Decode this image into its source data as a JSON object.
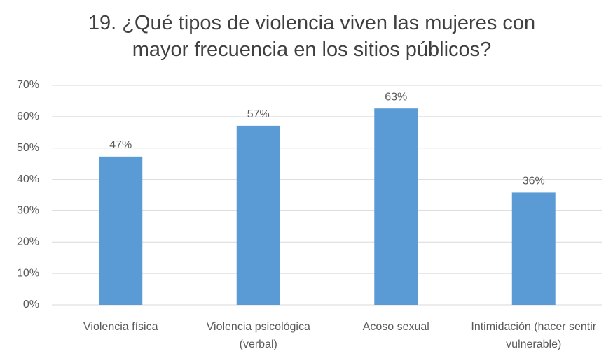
{
  "chart_data": {
    "type": "bar",
    "title": "19. ¿Qué tipos de violencia viven las mujeres con mayor frecuencia en los sitios públicos?",
    "categories": [
      "Violencia física",
      "Violencia psicológica (verbal)",
      "Acoso sexual",
      "Intimidación (hacer sentir vulnerable)"
    ],
    "values": [
      47.3,
      57.1,
      62.6,
      35.8
    ],
    "value_labels": [
      "47%",
      "57%",
      "63%",
      "36%"
    ],
    "color": "#5b9bd5",
    "ylim": [
      0,
      70
    ],
    "yticks": [
      {
        "value": 0,
        "label": "0%"
      },
      {
        "value": 10,
        "label": "10%"
      },
      {
        "value": 20,
        "label": "20%"
      },
      {
        "value": 30,
        "label": "30%"
      },
      {
        "value": 40,
        "label": "40%"
      },
      {
        "value": 50,
        "label": "50%"
      },
      {
        "value": 60,
        "label": "60%"
      },
      {
        "value": 70,
        "label": "70%"
      }
    ],
    "grid": true
  }
}
